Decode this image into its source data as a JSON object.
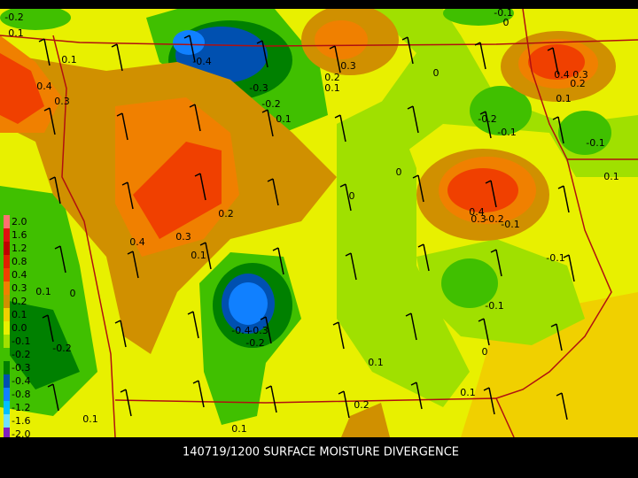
{
  "title": "140719/1200 SURFACE MOISTURE DIVERGENCE",
  "legend": {
    "items": [
      {
        "label": "2.0",
        "color": "#ff7070"
      },
      {
        "label": "1.6",
        "color": "#e01010"
      },
      {
        "label": "1.2",
        "color": "#c00000"
      },
      {
        "label": "0.8",
        "color": "#e02000"
      },
      {
        "label": "0.4",
        "color": "#f04000"
      },
      {
        "label": "0.3",
        "color": "#f08000"
      },
      {
        "label": "0.2",
        "color": "#d09000"
      },
      {
        "label": "0.1",
        "color": "#f0d000"
      },
      {
        "label": "0.0",
        "color": "#e8f000"
      },
      {
        "label": "-0.1",
        "color": "#a0e000"
      },
      {
        "label": "-0.2",
        "color": "#40c000"
      },
      {
        "label": "-0.3",
        "color": "#008000"
      },
      {
        "label": "-0.4",
        "color": "#0050b0"
      },
      {
        "label": "-0.8",
        "color": "#1080ff"
      },
      {
        "label": "-1.2",
        "color": "#00c0ff"
      },
      {
        "label": "-1.6",
        "color": "#70e0ff"
      },
      {
        "label": "-2.0",
        "color": "#8020c0"
      }
    ]
  },
  "contour_labels": [
    "-0.2",
    "0.1",
    "0.4",
    "0.3",
    "0.1",
    "-0.4",
    "-0.3",
    "-0.2",
    "0.1",
    "0.3",
    "0.2",
    "0.1",
    "0",
    "-0.1",
    "0",
    "0.4",
    "0.3",
    "0.2",
    "0.1",
    "-0.2",
    "-0.1",
    "-0.1",
    "0.1",
    "0",
    "0",
    "0.2",
    "0.4",
    "0.3",
    "0.1",
    "0.4",
    "0.3",
    "-0.2",
    "-0.1",
    "-0.1",
    "-0.1",
    "0",
    "0.1",
    "0",
    "-0.2",
    "-0.4",
    "-0.3",
    "-0.2",
    "0.1",
    "0.2",
    "0.1",
    "0.1",
    "0.1"
  ]
}
